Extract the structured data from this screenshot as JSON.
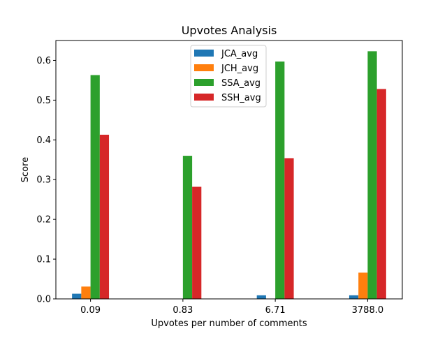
{
  "chart_data": {
    "type": "bar",
    "title": "Upvotes Analysis",
    "xlabel": "Upvotes per number of comments",
    "ylabel": "Score",
    "categories": [
      "0.09",
      "0.83",
      "6.71",
      "3788.0"
    ],
    "ylim": [
      0,
      0.65
    ],
    "yticks": [
      "0.0",
      "0.1",
      "0.2",
      "0.3",
      "0.4",
      "0.5",
      "0.6"
    ],
    "legend_position": "top-center",
    "grid": false,
    "series": [
      {
        "name": "JCA_avg",
        "color": "#1f77b4",
        "values": [
          0.013,
          0.0,
          0.009,
          0.009
        ]
      },
      {
        "name": "JCH_avg",
        "color": "#ff7f0e",
        "values": [
          0.031,
          0.0,
          0.0,
          0.066
        ]
      },
      {
        "name": "SSA_avg",
        "color": "#2ca02c",
        "values": [
          0.563,
          0.36,
          0.597,
          0.623
        ]
      },
      {
        "name": "SSH_avg",
        "color": "#d62728",
        "values": [
          0.413,
          0.282,
          0.354,
          0.528
        ]
      }
    ]
  }
}
